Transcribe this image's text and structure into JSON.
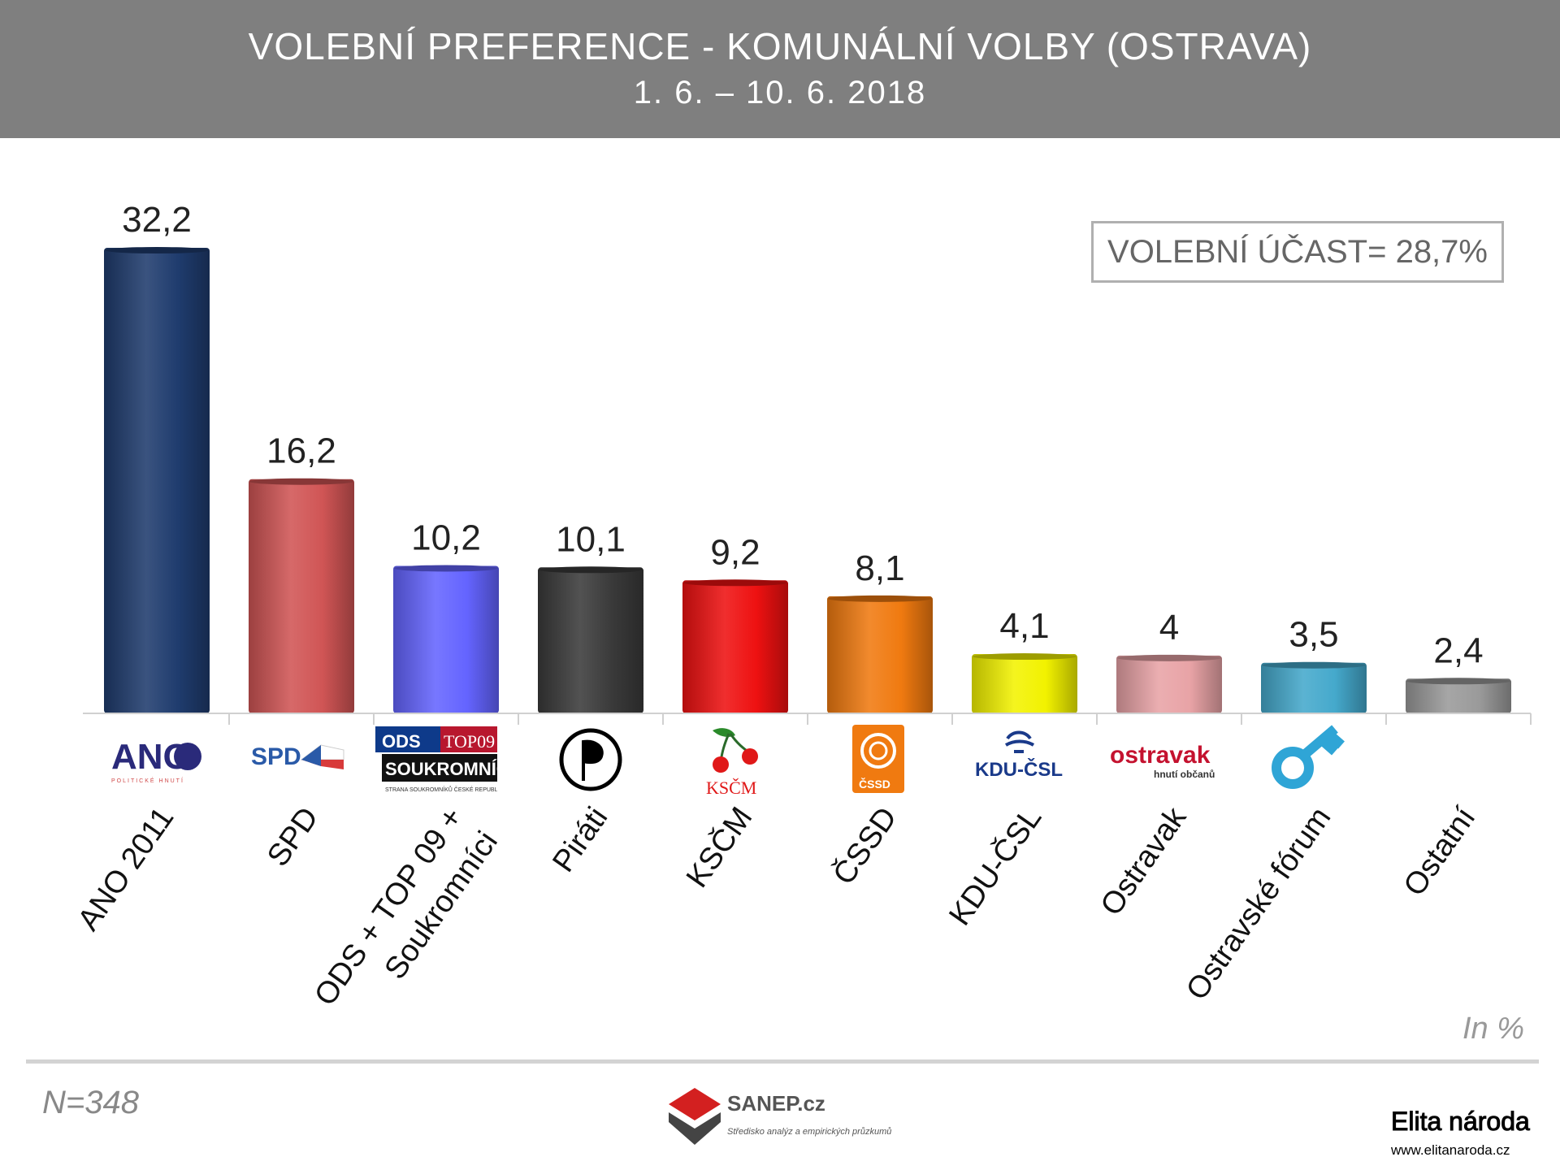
{
  "header": {
    "title": "VOLEBNÍ PREFERENCE - KOMUNÁLNÍ VOLBY (OSTRAVA)",
    "subtitle": "1. 6. – 10. 6. 2018"
  },
  "turnout_label": "VOLEBNÍ ÚČAST= 28,7%",
  "unit_label": "In %",
  "sample_label": "N=348",
  "source": {
    "name": "SANEP.cz",
    "tagline": "Středisko analýz a empirických průzkumů"
  },
  "watermark": {
    "line1": "Elita národa",
    "line2": "www.elitanaroda.cz"
  },
  "logos": {
    "ano": "ANO",
    "ano_sub": "POLITICKÉ HNUTÍ",
    "spd": "SPD",
    "ods": "ODS",
    "top09": "TOP09",
    "soukromnici": "SOUKROMNÍCI",
    "soukromnici_sub": "STRANA SOUKROMNÍKŮ ČESKÉ REPUBLIKY",
    "kscm": "KSČM",
    "cssd": "ČSSD",
    "kdu": "KDU-ČSL",
    "ostravak": "ostravak",
    "ostravak_sub": "hnutí občanů"
  },
  "chart_data": {
    "type": "bar",
    "categories": [
      "ANO 2011",
      "SPD",
      "ODS + TOP 09 + Soukromníci",
      "Piráti",
      "KSČM",
      "ČSSD",
      "KDU-ČSL",
      "Ostravak",
      "Ostravské fórum",
      "Ostatní"
    ],
    "values": [
      32.2,
      16.2,
      10.2,
      10.1,
      9.2,
      8.1,
      4.1,
      4,
      3.5,
      2.4
    ],
    "value_labels": [
      "32,2",
      "16,2",
      "10,2",
      "10,1",
      "9,2",
      "8,1",
      "4,1",
      "4",
      "3,5",
      "2,4"
    ],
    "colors": [
      "#1f3c6e",
      "#d05555",
      "#6464ff",
      "#3a3a3a",
      "#ee1111",
      "#f07a10",
      "#f2f200",
      "#e8a3a6",
      "#45a9cc",
      "#9a9a9a"
    ],
    "ylim": [
      0,
      32.2
    ],
    "grid": false,
    "legend": "none"
  }
}
